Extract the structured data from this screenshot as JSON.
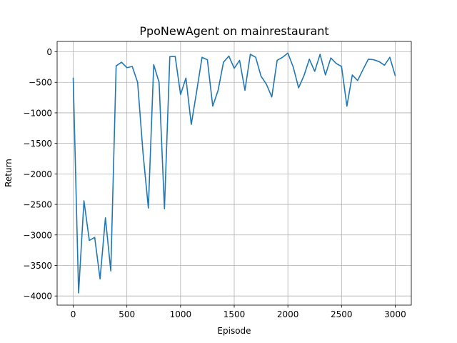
{
  "chart_data": {
    "type": "line",
    "title": "PpoNewAgent on mainrestaurant",
    "xlabel": "Episode",
    "ylabel": "Return",
    "xlim": [
      -150,
      3150
    ],
    "ylim": [
      -4150,
      170
    ],
    "xticks": [
      0,
      500,
      1000,
      1500,
      2000,
      2500,
      3000
    ],
    "xtick_labels": [
      "0",
      "500",
      "1000",
      "1500",
      "2000",
      "2500",
      "3000"
    ],
    "yticks": [
      0,
      -500,
      -1000,
      -1500,
      -2000,
      -2500,
      -3000,
      -3500,
      -4000
    ],
    "ytick_labels": [
      "0",
      "−500",
      "−1000",
      "−1500",
      "−2000",
      "−2500",
      "−3000",
      "−3500",
      "−4000"
    ],
    "grid": true,
    "line_color": "#1f77b4",
    "series": [
      {
        "x": [
          0,
          50,
          100,
          150,
          200,
          250,
          300,
          350,
          400,
          450,
          500,
          550,
          600,
          650,
          700,
          750,
          800,
          850,
          900,
          950,
          1000,
          1050,
          1100,
          1150,
          1200,
          1250,
          1300,
          1350,
          1400,
          1450,
          1500,
          1550,
          1600,
          1650,
          1700,
          1750,
          1800,
          1850,
          1900,
          1950,
          2000,
          2050,
          2100,
          2150,
          2200,
          2250,
          2300,
          2350,
          2400,
          2450,
          2500,
          2550,
          2600,
          2650,
          2700,
          2750,
          2800,
          2850,
          2900,
          2950,
          3000
        ],
        "values": [
          -430,
          -3950,
          -2440,
          -3090,
          -3040,
          -3720,
          -2720,
          -3590,
          -230,
          -170,
          -260,
          -240,
          -500,
          -1650,
          -2560,
          -210,
          -500,
          -2570,
          -80,
          -75,
          -700,
          -430,
          -1190,
          -650,
          -90,
          -130,
          -890,
          -630,
          -170,
          -70,
          -270,
          -140,
          -630,
          -40,
          -90,
          -400,
          -530,
          -740,
          -140,
          -90,
          -20,
          -250,
          -590,
          -390,
          -120,
          -320,
          -40,
          -380,
          -100,
          -190,
          -240,
          -890,
          -380,
          -470,
          -290,
          -120,
          -130,
          -160,
          -220,
          -90,
          -390
        ]
      }
    ]
  }
}
